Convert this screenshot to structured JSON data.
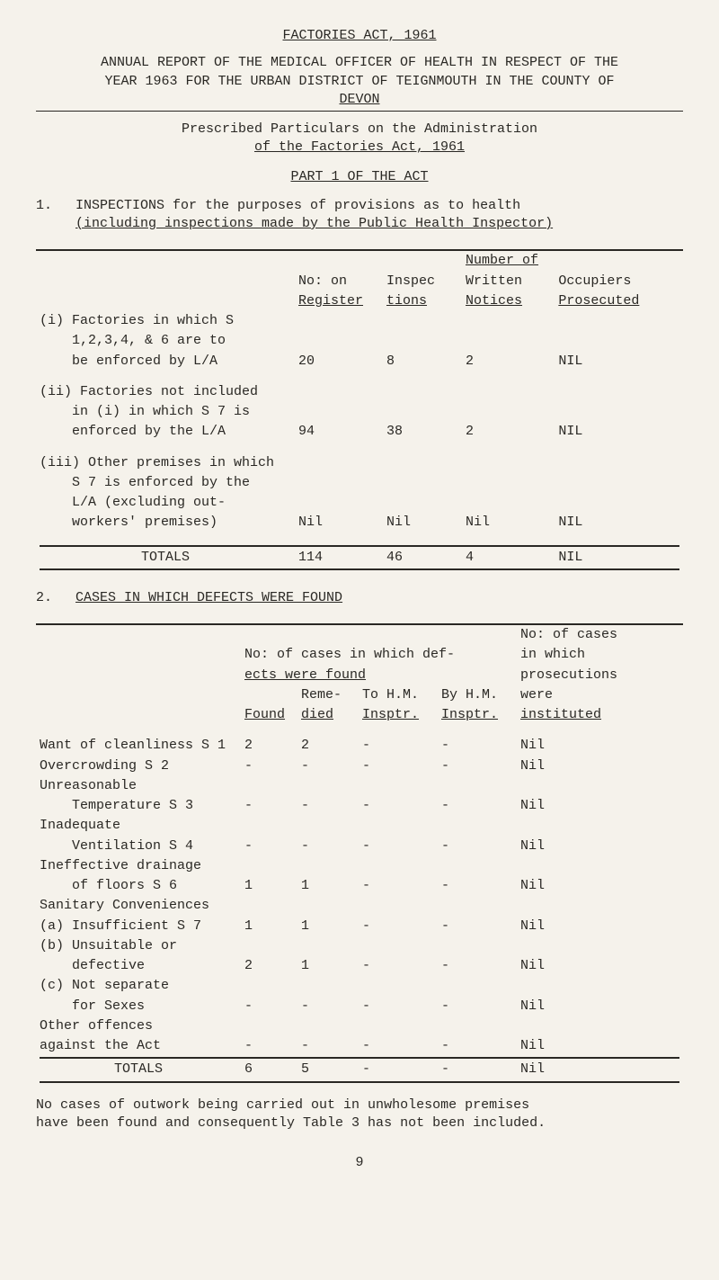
{
  "header": {
    "act_title": "FACTORIES ACT, 1961",
    "report_line1": "ANNUAL REPORT OF THE MEDICAL OFFICER OF HEALTH IN RESPECT OF THE",
    "report_line2": "YEAR 1963 FOR THE URBAN DISTRICT OF TEIGNMOUTH IN THE COUNTY OF",
    "report_line3": "DEVON",
    "prescribed1": "Prescribed Particulars on the Administration",
    "prescribed2": "of the Factories Act, 1961",
    "part": "PART 1 OF THE ACT"
  },
  "section1": {
    "num": "1.",
    "line1": "INSPECTIONS for the purposes of provisions as to health",
    "line2": "(including inspections made by the Public Health Inspector)",
    "head_super": "Number of",
    "head_c1a": "No: on",
    "head_c1b": "Register",
    "head_c2a": "Inspec",
    "head_c2b": "tions",
    "head_c3a": "Written",
    "head_c3b": "Notices",
    "head_c4a": "Occupiers",
    "head_c4b": "Prosecuted",
    "rows": [
      {
        "idx": "(i)",
        "l1": "Factories in which S",
        "l2": "1,2,3,4, & 6 are to",
        "l3": "be enforced by L/A",
        "c1": "20",
        "c2": "8",
        "c3": "2",
        "c4": "NIL"
      },
      {
        "idx": "(ii)",
        "l1": "Factories not included",
        "l2": "in (i) in which S 7 is",
        "l3": "enforced by the L/A",
        "c1": "94",
        "c2": "38",
        "c3": "2",
        "c4": "NIL"
      },
      {
        "idx": "(iii)",
        "l1": "Other premises in which",
        "l2": "S 7 is enforced by the",
        "l3": "L/A (excluding out-",
        "l4": "workers' premises)",
        "c1": "Nil",
        "c2": "Nil",
        "c3": "Nil",
        "c4": "NIL"
      }
    ],
    "totals_label": "TOTALS",
    "totals": {
      "c1": "114",
      "c2": "46",
      "c3": "4",
      "c4": "NIL"
    }
  },
  "section2": {
    "num": "2.",
    "title": "CASES IN WHICH DEFECTS WERE FOUND",
    "head_block": {
      "r1_c4": "No: of cases",
      "r2_span": "No: of cases in which def-",
      "r2_c4": "in which",
      "r3_span": "ects were found",
      "r3_c4": "prosecutions",
      "r4_c1": "Reme-",
      "r4_c2": "To H.M.",
      "r4_c3": "By H.M.",
      "r4_c4": "were",
      "r5_c0": "Found",
      "r5_c1": "died",
      "r5_c2": "Insptr.",
      "r5_c3": "Insptr.",
      "r5_c4": "instituted"
    },
    "rows": [
      {
        "label": "Want of cleanliness",
        "code": "S 1",
        "c0": "2",
        "c1": "2",
        "c2": "-",
        "c3": "-",
        "c4": "Nil"
      },
      {
        "label": "Overcrowding",
        "code": "S 2",
        "c0": "-",
        "c1": "-",
        "c2": "-",
        "c3": "-",
        "c4": "Nil"
      },
      {
        "label": "Unreasonable",
        "code": "",
        "c0": "",
        "c1": "",
        "c2": "",
        "c3": "",
        "c4": ""
      },
      {
        "label": "    Temperature",
        "code": "S 3",
        "c0": "-",
        "c1": "-",
        "c2": "-",
        "c3": "-",
        "c4": "Nil"
      },
      {
        "label": "Inadequate",
        "code": "",
        "c0": "",
        "c1": "",
        "c2": "",
        "c3": "",
        "c4": ""
      },
      {
        "label": "    Ventilation",
        "code": "S 4",
        "c0": "-",
        "c1": "-",
        "c2": "-",
        "c3": "-",
        "c4": "Nil"
      },
      {
        "label": "Ineffective drainage",
        "code": "",
        "c0": "",
        "c1": "",
        "c2": "",
        "c3": "",
        "c4": ""
      },
      {
        "label": "    of floors",
        "code": "S 6",
        "c0": "1",
        "c1": "1",
        "c2": "-",
        "c3": "-",
        "c4": "Nil"
      },
      {
        "label": "Sanitary Conveniences",
        "code": "",
        "c0": "",
        "c1": "",
        "c2": "",
        "c3": "",
        "c4": ""
      },
      {
        "label": "(a) Insufficient",
        "code": "S 7",
        "c0": "1",
        "c1": "1",
        "c2": "-",
        "c3": "-",
        "c4": "Nil"
      },
      {
        "label": "(b) Unsuitable or",
        "code": "",
        "c0": "",
        "c1": "",
        "c2": "",
        "c3": "",
        "c4": ""
      },
      {
        "label": "    defective",
        "code": "",
        "c0": "2",
        "c1": "1",
        "c2": "-",
        "c3": "-",
        "c4": "Nil"
      },
      {
        "label": "(c) Not separate",
        "code": "",
        "c0": "",
        "c1": "",
        "c2": "",
        "c3": "",
        "c4": ""
      },
      {
        "label": "    for Sexes",
        "code": "",
        "c0": "-",
        "c1": "-",
        "c2": "-",
        "c3": "-",
        "c4": "Nil"
      },
      {
        "label": "Other offences",
        "code": "",
        "c0": "",
        "c1": "",
        "c2": "",
        "c3": "",
        "c4": ""
      },
      {
        "label": "against the Act",
        "code": "",
        "c0": "-",
        "c1": "-",
        "c2": "-",
        "c3": "-",
        "c4": "Nil"
      }
    ],
    "totals_label": "TOTALS",
    "totals": {
      "c0": "6",
      "c1": "5",
      "c2": "-",
      "c3": "-",
      "c4": "Nil"
    }
  },
  "footnote": {
    "l1": "No cases of outwork being carried out in unwholesome premises",
    "l2": "have been found and consequently Table 3 has not been included."
  },
  "page_number": "9"
}
